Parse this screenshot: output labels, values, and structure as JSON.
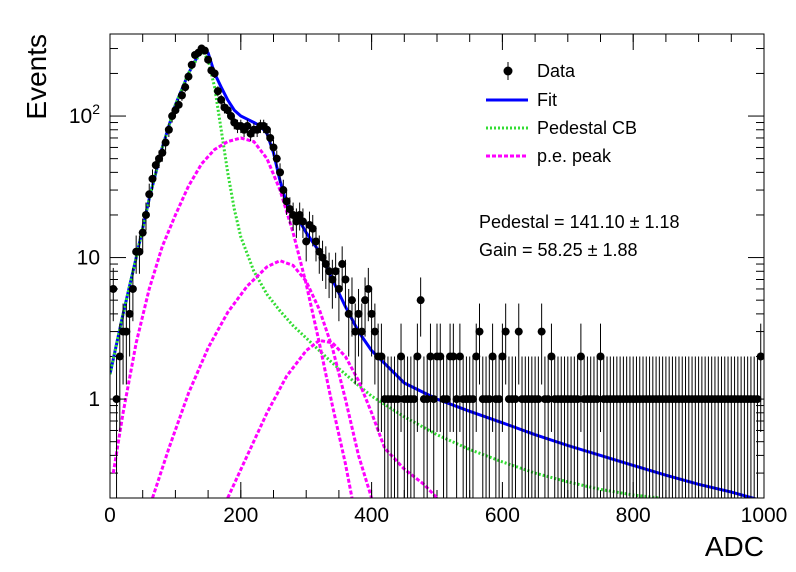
{
  "chart_data": {
    "type": "scatter",
    "title": "",
    "xlabel": "ADC",
    "ylabel": "Events",
    "xlim": [
      0,
      1000
    ],
    "ylim": [
      0.2,
      380
    ],
    "yscale": "log",
    "x_ticks": [
      {
        "v": 0,
        "label": "0"
      },
      {
        "v": 200,
        "label": "200"
      },
      {
        "v": 400,
        "label": "400"
      },
      {
        "v": 600,
        "label": "600"
      },
      {
        "v": 800,
        "label": "800"
      },
      {
        "v": 1000,
        "label": "1000"
      }
    ],
    "y_ticks": [
      {
        "v": 1,
        "label": "1"
      },
      {
        "v": 10,
        "label": "10"
      },
      {
        "v": 100,
        "label": "10",
        "exponent": "2"
      }
    ],
    "legend": {
      "position": "top-right",
      "entries": [
        {
          "label": "Data",
          "style": "marker",
          "color": "#000000"
        },
        {
          "label": "Fit",
          "style": "solid",
          "color": "#0000ff"
        },
        {
          "label": "Pedestal CB",
          "style": "dotted",
          "color": "#33dd33"
        },
        {
          "label": "p.e. peak",
          "style": "dotted",
          "color": "#ff00ff"
        }
      ]
    },
    "annotations": [
      "Pedestal = 141.10 ± 1.18",
      "Gain = 58.25 ± 1.88"
    ],
    "data_series": {
      "name": "Data",
      "color": "#000000",
      "points": [
        [
          5,
          6
        ],
        [
          10,
          1
        ],
        [
          15,
          2
        ],
        [
          20,
          3
        ],
        [
          25,
          3
        ],
        [
          30,
          4
        ],
        [
          35,
          6
        ],
        [
          40,
          11
        ],
        [
          45,
          11
        ],
        [
          50,
          15
        ],
        [
          55,
          20
        ],
        [
          60,
          28
        ],
        [
          65,
          36
        ],
        [
          70,
          45
        ],
        [
          75,
          50
        ],
        [
          80,
          55
        ],
        [
          85,
          65
        ],
        [
          90,
          80
        ],
        [
          95,
          100
        ],
        [
          100,
          110
        ],
        [
          105,
          120
        ],
        [
          110,
          140
        ],
        [
          115,
          160
        ],
        [
          120,
          190
        ],
        [
          125,
          230
        ],
        [
          130,
          270
        ],
        [
          135,
          280
        ],
        [
          140,
          300
        ],
        [
          145,
          290
        ],
        [
          150,
          250
        ],
        [
          155,
          210
        ],
        [
          160,
          200
        ],
        [
          165,
          150
        ],
        [
          170,
          130
        ],
        [
          175,
          115
        ],
        [
          180,
          110
        ],
        [
          185,
          100
        ],
        [
          190,
          90
        ],
        [
          195,
          85
        ],
        [
          200,
          85
        ],
        [
          205,
          80
        ],
        [
          210,
          85
        ],
        [
          215,
          75
        ],
        [
          220,
          80
        ],
        [
          225,
          80
        ],
        [
          230,
          85
        ],
        [
          235,
          85
        ],
        [
          240,
          80
        ],
        [
          245,
          70
        ],
        [
          250,
          60
        ],
        [
          255,
          50
        ],
        [
          260,
          40
        ],
        [
          265,
          30
        ],
        [
          270,
          25
        ],
        [
          275,
          22
        ],
        [
          280,
          20
        ],
        [
          285,
          18
        ],
        [
          290,
          20
        ],
        [
          295,
          18
        ],
        [
          300,
          13
        ],
        [
          305,
          17
        ],
        [
          310,
          16
        ],
        [
          315,
          13
        ],
        [
          320,
          11
        ],
        [
          325,
          10
        ],
        [
          330,
          9
        ],
        [
          335,
          8
        ],
        [
          340,
          7
        ],
        [
          345,
          8
        ],
        [
          350,
          6
        ],
        [
          355,
          9
        ],
        [
          360,
          7
        ],
        [
          365,
          4
        ],
        [
          370,
          5
        ],
        [
          375,
          3
        ],
        [
          380,
          4
        ],
        [
          385,
          3
        ],
        [
          390,
          5
        ],
        [
          395,
          6
        ],
        [
          400,
          4
        ],
        [
          405,
          3
        ],
        [
          410,
          2
        ],
        [
          415,
          2
        ],
        [
          420,
          1
        ],
        [
          425,
          1
        ],
        [
          430,
          1
        ],
        [
          435,
          1
        ],
        [
          440,
          1
        ],
        [
          445,
          2
        ],
        [
          450,
          1
        ],
        [
          455,
          1
        ],
        [
          460,
          1
        ],
        [
          465,
          1
        ],
        [
          470,
          2
        ],
        [
          475,
          5
        ],
        [
          480,
          1
        ],
        [
          485,
          1
        ],
        [
          490,
          2
        ],
        [
          495,
          1
        ],
        [
          500,
          2
        ],
        [
          505,
          2
        ],
        [
          510,
          1
        ],
        [
          515,
          1
        ],
        [
          520,
          2
        ],
        [
          525,
          2
        ],
        [
          530,
          1
        ],
        [
          535,
          2
        ],
        [
          540,
          1
        ],
        [
          545,
          1
        ],
        [
          550,
          1
        ],
        [
          555,
          1
        ],
        [
          560,
          2
        ],
        [
          565,
          3
        ],
        [
          570,
          1
        ],
        [
          575,
          1
        ],
        [
          580,
          1
        ],
        [
          585,
          2
        ],
        [
          590,
          1
        ],
        [
          595,
          1
        ],
        [
          600,
          2
        ],
        [
          605,
          3
        ],
        [
          610,
          1
        ],
        [
          615,
          1
        ],
        [
          620,
          1
        ],
        [
          625,
          3
        ],
        [
          630,
          1
        ],
        [
          635,
          1
        ],
        [
          640,
          1
        ],
        [
          645,
          1
        ],
        [
          650,
          1
        ],
        [
          655,
          1
        ],
        [
          660,
          3
        ],
        [
          665,
          1
        ],
        [
          670,
          1
        ],
        [
          675,
          2
        ],
        [
          680,
          1
        ],
        [
          685,
          1
        ],
        [
          690,
          1
        ],
        [
          695,
          1
        ],
        [
          700,
          1
        ],
        [
          705,
          1
        ],
        [
          710,
          1
        ],
        [
          715,
          1
        ],
        [
          720,
          2
        ],
        [
          725,
          1
        ],
        [
          730,
          1
        ],
        [
          735,
          1
        ],
        [
          740,
          1
        ],
        [
          745,
          1
        ],
        [
          750,
          2
        ],
        [
          755,
          1
        ],
        [
          760,
          1
        ],
        [
          765,
          1
        ],
        [
          770,
          1
        ],
        [
          775,
          1
        ],
        [
          780,
          1
        ],
        [
          785,
          1
        ],
        [
          790,
          1
        ],
        [
          795,
          1
        ],
        [
          800,
          1
        ],
        [
          805,
          1
        ],
        [
          810,
          1
        ],
        [
          815,
          1
        ],
        [
          820,
          1
        ],
        [
          825,
          1
        ],
        [
          830,
          1
        ],
        [
          835,
          1
        ],
        [
          840,
          1
        ],
        [
          845,
          1
        ],
        [
          850,
          1
        ],
        [
          855,
          1
        ],
        [
          860,
          1
        ],
        [
          865,
          1
        ],
        [
          870,
          1
        ],
        [
          875,
          1
        ],
        [
          880,
          1
        ],
        [
          885,
          1
        ],
        [
          890,
          1
        ],
        [
          895,
          1
        ],
        [
          900,
          1
        ],
        [
          905,
          1
        ],
        [
          910,
          1
        ],
        [
          915,
          1
        ],
        [
          920,
          1
        ],
        [
          925,
          1
        ],
        [
          930,
          1
        ],
        [
          935,
          1
        ],
        [
          940,
          1
        ],
        [
          945,
          1
        ],
        [
          950,
          1
        ],
        [
          955,
          1
        ],
        [
          960,
          1
        ],
        [
          965,
          1
        ],
        [
          970,
          1
        ],
        [
          975,
          1
        ],
        [
          980,
          1
        ],
        [
          985,
          1
        ],
        [
          990,
          1
        ],
        [
          995,
          2
        ]
      ]
    },
    "curves": [
      {
        "name": "Fit",
        "color": "#0000ff",
        "style": "solid",
        "points": [
          [
            0,
            1.5
          ],
          [
            20,
            4
          ],
          [
            40,
            10
          ],
          [
            60,
            26
          ],
          [
            80,
            60
          ],
          [
            100,
            120
          ],
          [
            120,
            200
          ],
          [
            140,
            300
          ],
          [
            150,
            280
          ],
          [
            160,
            200
          ],
          [
            170,
            160
          ],
          [
            180,
            130
          ],
          [
            190,
            110
          ],
          [
            200,
            100
          ],
          [
            210,
            95
          ],
          [
            220,
            90
          ],
          [
            230,
            85
          ],
          [
            240,
            75
          ],
          [
            250,
            55
          ],
          [
            260,
            35
          ],
          [
            270,
            24
          ],
          [
            280,
            20
          ],
          [
            290,
            18
          ],
          [
            300,
            15
          ],
          [
            320,
            11
          ],
          [
            340,
            7
          ],
          [
            360,
            4.5
          ],
          [
            380,
            3
          ],
          [
            400,
            2.2
          ],
          [
            450,
            1.3
          ],
          [
            500,
            1.0
          ],
          [
            550,
            0.82
          ],
          [
            600,
            0.68
          ],
          [
            650,
            0.56
          ],
          [
            700,
            0.47
          ],
          [
            750,
            0.4
          ],
          [
            800,
            0.34
          ],
          [
            850,
            0.29
          ],
          [
            900,
            0.25
          ],
          [
            950,
            0.22
          ],
          [
            1000,
            0.19
          ]
        ]
      },
      {
        "name": "Pedestal CB",
        "color": "#33dd33",
        "style": "dotted",
        "points": [
          [
            0,
            1.5
          ],
          [
            20,
            4
          ],
          [
            40,
            10
          ],
          [
            60,
            26
          ],
          [
            80,
            60
          ],
          [
            100,
            120
          ],
          [
            120,
            200
          ],
          [
            140,
            290
          ],
          [
            150,
            250
          ],
          [
            160,
            160
          ],
          [
            170,
            80
          ],
          [
            180,
            40
          ],
          [
            190,
            22
          ],
          [
            200,
            14
          ],
          [
            220,
            8
          ],
          [
            240,
            5.5
          ],
          [
            260,
            4.2
          ],
          [
            280,
            3.3
          ],
          [
            300,
            2.7
          ],
          [
            320,
            2.2
          ],
          [
            340,
            1.8
          ],
          [
            360,
            1.5
          ],
          [
            380,
            1.25
          ],
          [
            400,
            1.05
          ],
          [
            450,
            0.75
          ],
          [
            500,
            0.56
          ],
          [
            550,
            0.44
          ],
          [
            600,
            0.36
          ],
          [
            650,
            0.3
          ],
          [
            700,
            0.26
          ],
          [
            750,
            0.23
          ],
          [
            800,
            0.21
          ],
          [
            840,
            0.2
          ]
        ]
      },
      {
        "name": "p.e. peak 1",
        "color": "#ff00ff",
        "style": "dotted",
        "points": [
          [
            5,
            0.3
          ],
          [
            20,
            0.8
          ],
          [
            40,
            2.5
          ],
          [
            60,
            6
          ],
          [
            80,
            12
          ],
          [
            100,
            20
          ],
          [
            120,
            32
          ],
          [
            140,
            46
          ],
          [
            160,
            58
          ],
          [
            180,
            66
          ],
          [
            200,
            70
          ],
          [
            220,
            66
          ],
          [
            240,
            50
          ],
          [
            260,
            30
          ],
          [
            280,
            15
          ],
          [
            300,
            6.5
          ],
          [
            320,
            2.5
          ],
          [
            340,
            0.9
          ],
          [
            360,
            0.35
          ],
          [
            370,
            0.2
          ]
        ]
      },
      {
        "name": "p.e. peak 2",
        "color": "#ff00ff",
        "style": "dotted",
        "points": [
          [
            65,
            0.2
          ],
          [
            90,
            0.45
          ],
          [
            120,
            1.1
          ],
          [
            150,
            2.3
          ],
          [
            180,
            4.1
          ],
          [
            210,
            6.3
          ],
          [
            240,
            8.6
          ],
          [
            260,
            9.5
          ],
          [
            280,
            8.8
          ],
          [
            300,
            6.8
          ],
          [
            320,
            4.3
          ],
          [
            340,
            2.3
          ],
          [
            360,
            1.0
          ],
          [
            380,
            0.4
          ],
          [
            400,
            0.2
          ]
        ]
      },
      {
        "name": "p.e. peak 3",
        "color": "#ff00ff",
        "style": "dotted",
        "points": [
          [
            180,
            0.2
          ],
          [
            210,
            0.4
          ],
          [
            240,
            0.8
          ],
          [
            270,
            1.45
          ],
          [
            300,
            2.2
          ],
          [
            320,
            2.6
          ],
          [
            340,
            2.5
          ],
          [
            360,
            2.0
          ],
          [
            380,
            1.35
          ],
          [
            400,
            0.8
          ],
          [
            420,
            0.45
          ],
          [
            450,
            0.32
          ],
          [
            480,
            0.25
          ],
          [
            500,
            0.2
          ]
        ]
      }
    ]
  }
}
